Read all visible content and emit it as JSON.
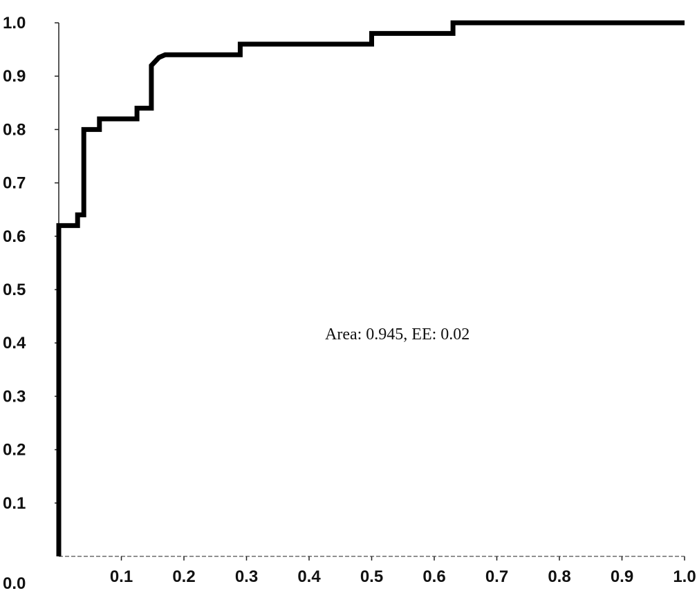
{
  "chart_data": {
    "type": "line",
    "title": "",
    "xlabel": "",
    "ylabel": "",
    "xlim": [
      0,
      1
    ],
    "ylim": [
      0,
      1
    ],
    "grid": false,
    "x_ticks": [
      "0.1",
      "0.2",
      "0.3",
      "0.4",
      "0.5",
      "0.6",
      "0.7",
      "0.8",
      "0.9",
      "1.0"
    ],
    "y_ticks": [
      "0.0",
      "0.1",
      "0.2",
      "0.3",
      "0.4",
      "0.5",
      "0.6",
      "0.7",
      "0.8",
      "0.9",
      "1.0"
    ],
    "annotation": "Area: 0.945, EE: 0.02",
    "series": [
      {
        "color": "#000000",
        "x": [
          0.0,
          0.0,
          0.03,
          0.03,
          0.04,
          0.04,
          0.065,
          0.065,
          0.095,
          0.095,
          0.125,
          0.125,
          0.148,
          0.148,
          0.16,
          0.17,
          0.2,
          0.29,
          0.29,
          0.5,
          0.5,
          0.63,
          0.63,
          0.75,
          1.0
        ],
        "y": [
          0.0,
          0.62,
          0.62,
          0.64,
          0.64,
          0.8,
          0.8,
          0.82,
          0.82,
          0.82,
          0.82,
          0.84,
          0.84,
          0.92,
          0.935,
          0.94,
          0.94,
          0.94,
          0.96,
          0.96,
          0.98,
          0.98,
          1.0,
          1.0,
          1.0
        ]
      }
    ]
  }
}
